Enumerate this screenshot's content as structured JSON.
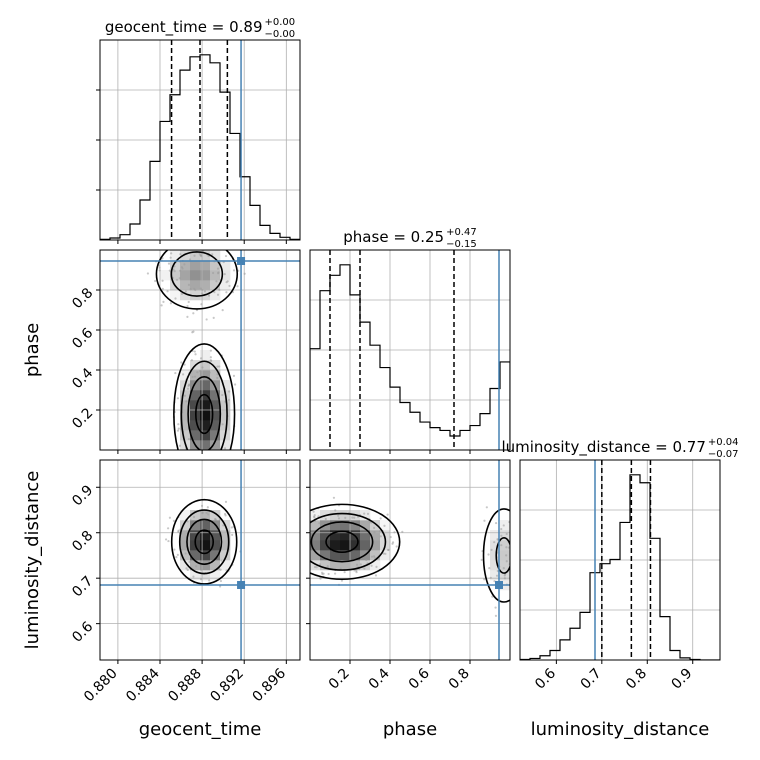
{
  "chart_data": {
    "type": "corner",
    "truth_color": "#4682b4",
    "parameters": [
      "geocent_time",
      "phase",
      "luminosity_distance"
    ],
    "truths": {
      "geocent_time": 0.8917,
      "phase": 0.945,
      "luminosity_distance": 0.685
    },
    "ranges": {
      "geocent_time": [
        0.8783,
        0.8973
      ],
      "phase": [
        0.0,
        1.0
      ],
      "luminosity_distance": [
        0.52,
        0.96
      ]
    },
    "axis_ticks": {
      "geocent_time": [
        "0.880",
        "0.884",
        "0.888",
        "0.892",
        "0.896"
      ],
      "phase": [
        "0.2",
        "0.4",
        "0.6",
        "0.8"
      ],
      "luminosity_distance": [
        "0.6",
        "0.7",
        "0.8",
        "0.9"
      ]
    },
    "axis_labels": {
      "geocent_time": "geocent_time",
      "phase": "phase",
      "luminosity_distance": "luminosity_distance"
    },
    "titles": [
      {
        "param": "geocent_time",
        "base": "geocent_time = 0.89",
        "plus": "+0.00",
        "minus": "−0.00"
      },
      {
        "param": "phase",
        "base": "phase = 0.25",
        "plus": "+0.47",
        "minus": "−0.15"
      },
      {
        "param": "luminosity_distance",
        "base": "luminosity_distance = 0.77",
        "plus": "+0.04",
        "minus": "−0.07"
      }
    ],
    "histograms": [
      {
        "param": "geocent_time",
        "bin_edges": [
          0.8783,
          0.87925,
          0.8802,
          0.88115,
          0.8821,
          0.88305,
          0.884,
          0.88495,
          0.8859,
          0.88685,
          0.8878,
          0.88875,
          0.8897,
          0.89065,
          0.8916,
          0.89255,
          0.8935,
          0.89445,
          0.8954,
          0.89635,
          0.8973
        ],
        "counts": [
          1,
          3,
          8,
          24,
          60,
          118,
          178,
          218,
          255,
          275,
          278,
          266,
          222,
          160,
          95,
          52,
          22,
          10,
          4,
          1
        ],
        "quantiles": [
          0.8851,
          0.8878,
          0.8904
        ]
      },
      {
        "param": "phase",
        "bin_edges": [
          0.0,
          0.05,
          0.1,
          0.15,
          0.2,
          0.25,
          0.3,
          0.35,
          0.4,
          0.45,
          0.5,
          0.55,
          0.6,
          0.65,
          0.7,
          0.75,
          0.8,
          0.85,
          0.9,
          0.95,
          1.0
        ],
        "counts": [
          145,
          228,
          250,
          265,
          222,
          183,
          150,
          118,
          90,
          68,
          54,
          40,
          32,
          28,
          20,
          28,
          35,
          52,
          88,
          126
        ],
        "quantiles": [
          0.1,
          0.25,
          0.72
        ]
      },
      {
        "param": "luminosity_distance",
        "bin_edges": [
          0.52,
          0.542,
          0.564,
          0.586,
          0.608,
          0.63,
          0.652,
          0.674,
          0.696,
          0.718,
          0.74,
          0.762,
          0.784,
          0.806,
          0.828,
          0.85,
          0.872,
          0.894,
          0.916,
          0.938,
          0.96
        ],
        "counts": [
          1,
          3,
          8,
          18,
          38,
          60,
          90,
          165,
          182,
          190,
          260,
          350,
          335,
          230,
          82,
          18,
          4,
          1,
          0,
          0
        ],
        "quantiles": [
          0.7,
          0.765,
          0.807
        ]
      }
    ],
    "density_2d": [
      {
        "x": "geocent_time",
        "y": "phase",
        "centers": [
          [
            0.8882,
            0.18,
            0.0014,
            0.17
          ],
          [
            0.8875,
            0.88,
            0.0022,
            0.1
          ]
        ],
        "weights": [
          1.0,
          0.55
        ]
      },
      {
        "x": "geocent_time",
        "y": "luminosity_distance",
        "centers": [
          [
            0.8882,
            0.78,
            0.0015,
            0.045
          ]
        ],
        "weights": [
          1.0
        ]
      },
      {
        "x": "phase",
        "y": "luminosity_distance",
        "centers": [
          [
            0.16,
            0.78,
            0.14,
            0.04
          ],
          [
            0.97,
            0.75,
            0.07,
            0.07
          ]
        ],
        "weights": [
          1.0,
          0.35
        ]
      }
    ]
  }
}
